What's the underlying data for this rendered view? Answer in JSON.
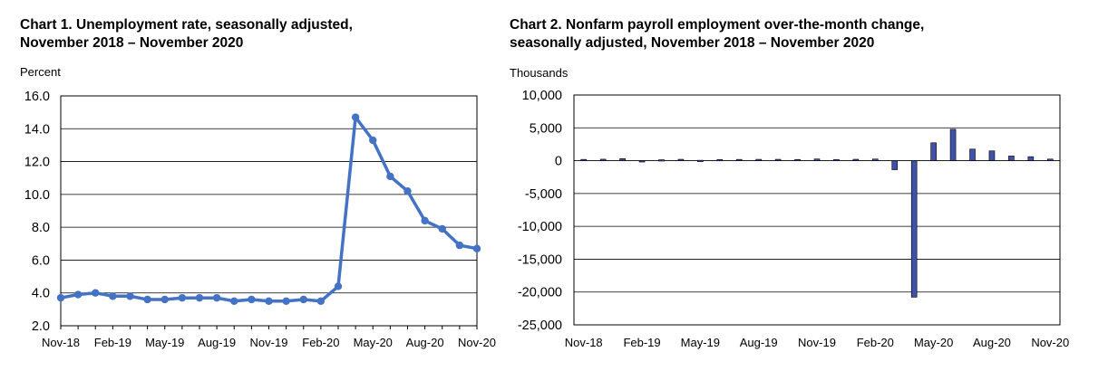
{
  "chart_data": [
    {
      "type": "line",
      "title_line1": "Chart 1. Unemployment rate, seasonally adjusted,",
      "title_line2": "November 2018 – November 2020",
      "ylabel": "Percent",
      "ylim": [
        2.0,
        16.0
      ],
      "yticks": [
        "2.0",
        "4.0",
        "6.0",
        "8.0",
        "10.0",
        "12.0",
        "14.0",
        "16.0"
      ],
      "xtick_labels": [
        "Nov-18",
        "Feb-19",
        "May-19",
        "Aug-19",
        "Nov-19",
        "Feb-20",
        "May-20",
        "Aug-20",
        "Nov-20"
      ],
      "x": [
        "Nov-18",
        "Dec-18",
        "Jan-19",
        "Feb-19",
        "Mar-19",
        "Apr-19",
        "May-19",
        "Jun-19",
        "Jul-19",
        "Aug-19",
        "Sep-19",
        "Oct-19",
        "Nov-19",
        "Dec-19",
        "Jan-20",
        "Feb-20",
        "Mar-20",
        "Apr-20",
        "May-20",
        "Jun-20",
        "Jul-20",
        "Aug-20",
        "Sep-20",
        "Oct-20",
        "Nov-20"
      ],
      "values": [
        3.7,
        3.9,
        4.0,
        3.8,
        3.8,
        3.6,
        3.6,
        3.7,
        3.7,
        3.7,
        3.5,
        3.6,
        3.5,
        3.5,
        3.6,
        3.5,
        4.4,
        14.7,
        13.3,
        11.1,
        10.2,
        8.4,
        7.9,
        6.9,
        6.7
      ],
      "grid": true,
      "color": "#4472c4"
    },
    {
      "type": "bar",
      "title_line1": "Chart 2. Nonfarm payroll employment over-the-month change,",
      "title_line2": "seasonally adjusted, November 2018 – November 2020",
      "ylabel": "Thousands",
      "ylim": [
        -25000,
        10000
      ],
      "yticks": [
        "-25,000",
        "-20,000",
        "-15,000",
        "-10,000",
        "-5,000",
        "0",
        "5,000",
        "10,000"
      ],
      "xtick_labels": [
        "Nov-18",
        "Feb-19",
        "May-19",
        "Aug-19",
        "Nov-19",
        "Feb-20",
        "May-20",
        "Aug-20",
        "Nov-20"
      ],
      "x": [
        "Nov-18",
        "Dec-18",
        "Jan-19",
        "Feb-19",
        "Mar-19",
        "Apr-19",
        "May-19",
        "Jun-19",
        "Jul-19",
        "Aug-19",
        "Sep-19",
        "Oct-19",
        "Nov-19",
        "Dec-19",
        "Jan-20",
        "Feb-20",
        "Mar-20",
        "Apr-20",
        "May-20",
        "Jun-20",
        "Jul-20",
        "Aug-20",
        "Sep-20",
        "Oct-20",
        "Nov-20"
      ],
      "values": [
        196,
        227,
        312,
        1,
        147,
        210,
        62,
        178,
        194,
        207,
        208,
        185,
        261,
        184,
        214,
        251,
        -1373,
        -20787,
        2725,
        4781,
        1761,
        1493,
        711,
        610,
        245
      ],
      "grid": true,
      "color": "#3f51a8"
    }
  ]
}
